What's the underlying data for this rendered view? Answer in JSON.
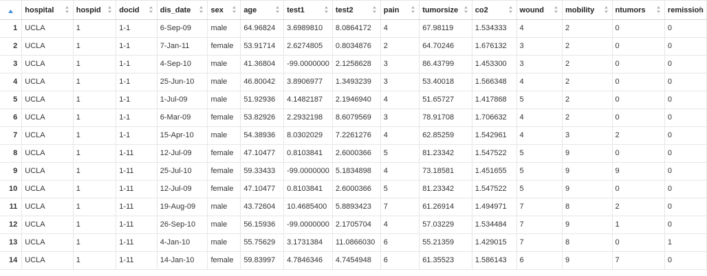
{
  "columns": [
    "hospital",
    "hospid",
    "docid",
    "dis_date",
    "sex",
    "age",
    "test1",
    "test2",
    "pain",
    "tumorsize",
    "co2",
    "wound",
    "mobility",
    "ntumors",
    "remission"
  ],
  "rows": [
    {
      "row_number": "1",
      "cells": [
        "UCLA",
        "1",
        "1-1",
        "6-Sep-09",
        "male",
        "64.96824",
        "3.6989810",
        "8.0864172",
        "4",
        "67.98119",
        "1.534333",
        "4",
        "2",
        "0",
        "0"
      ]
    },
    {
      "row_number": "2",
      "cells": [
        "UCLA",
        "1",
        "1-1",
        "7-Jan-11",
        "female",
        "53.91714",
        "2.6274805",
        "0.8034876",
        "2",
        "64.70246",
        "1.676132",
        "3",
        "2",
        "0",
        "0"
      ]
    },
    {
      "row_number": "3",
      "cells": [
        "UCLA",
        "1",
        "1-1",
        "4-Sep-10",
        "male",
        "41.36804",
        "-99.0000000",
        "2.1258628",
        "3",
        "86.43799",
        "1.453300",
        "3",
        "2",
        "0",
        "0"
      ]
    },
    {
      "row_number": "4",
      "cells": [
        "UCLA",
        "1",
        "1-1",
        "25-Jun-10",
        "male",
        "46.80042",
        "3.8906977",
        "1.3493239",
        "3",
        "53.40018",
        "1.566348",
        "4",
        "2",
        "0",
        "0"
      ]
    },
    {
      "row_number": "5",
      "cells": [
        "UCLA",
        "1",
        "1-1",
        "1-Jul-09",
        "male",
        "51.92936",
        "4.1482187",
        "2.1946940",
        "4",
        "51.65727",
        "1.417868",
        "5",
        "2",
        "0",
        "0"
      ]
    },
    {
      "row_number": "6",
      "cells": [
        "UCLA",
        "1",
        "1-1",
        "6-Mar-09",
        "female",
        "53.82926",
        "2.2932198",
        "8.6079569",
        "3",
        "78.91708",
        "1.706632",
        "4",
        "2",
        "0",
        "0"
      ]
    },
    {
      "row_number": "7",
      "cells": [
        "UCLA",
        "1",
        "1-1",
        "15-Apr-10",
        "male",
        "54.38936",
        "8.0302029",
        "7.2261276",
        "4",
        "62.85259",
        "1.542961",
        "4",
        "3",
        "2",
        "0"
      ]
    },
    {
      "row_number": "8",
      "cells": [
        "UCLA",
        "1",
        "1-11",
        "12-Jul-09",
        "female",
        "47.10477",
        "0.8103841",
        "2.6000366",
        "5",
        "81.23342",
        "1.547522",
        "5",
        "9",
        "0",
        "0"
      ]
    },
    {
      "row_number": "9",
      "cells": [
        "UCLA",
        "1",
        "1-11",
        "25-Jul-10",
        "female",
        "59.33433",
        "-99.0000000",
        "5.1834898",
        "4",
        "73.18581",
        "1.451655",
        "5",
        "9",
        "9",
        "0"
      ]
    },
    {
      "row_number": "10",
      "cells": [
        "UCLA",
        "1",
        "1-11",
        "12-Jul-09",
        "female",
        "47.10477",
        "0.8103841",
        "2.6000366",
        "5",
        "81.23342",
        "1.547522",
        "5",
        "9",
        "0",
        "0"
      ]
    },
    {
      "row_number": "11",
      "cells": [
        "UCLA",
        "1",
        "1-11",
        "19-Aug-09",
        "male",
        "43.72604",
        "10.4685400",
        "5.8893423",
        "7",
        "61.26914",
        "1.494971",
        "7",
        "8",
        "2",
        "0"
      ]
    },
    {
      "row_number": "12",
      "cells": [
        "UCLA",
        "1",
        "1-11",
        "26-Sep-10",
        "male",
        "56.15936",
        "-99.0000000",
        "2.1705704",
        "4",
        "57.03229",
        "1.534484",
        "7",
        "9",
        "1",
        "0"
      ]
    },
    {
      "row_number": "13",
      "cells": [
        "UCLA",
        "1",
        "1-11",
        "4-Jan-10",
        "male",
        "55.75629",
        "3.1731384",
        "11.0866030",
        "6",
        "55.21359",
        "1.429015",
        "7",
        "8",
        "0",
        "1"
      ]
    },
    {
      "row_number": "14",
      "cells": [
        "UCLA",
        "1",
        "1-11",
        "14-Jan-10",
        "female",
        "59.83997",
        "4.7846346",
        "4.7454948",
        "6",
        "61.35523",
        "1.586143",
        "6",
        "9",
        "7",
        "0"
      ]
    }
  ],
  "icons": {
    "corner": "sort-up-icon",
    "column": "sort-updown-icon"
  },
  "colors": {
    "grid_line": "#e6e6e6",
    "sort_icon": "#b0b0b0",
    "sort_icon_active": "#3a8cd6"
  }
}
